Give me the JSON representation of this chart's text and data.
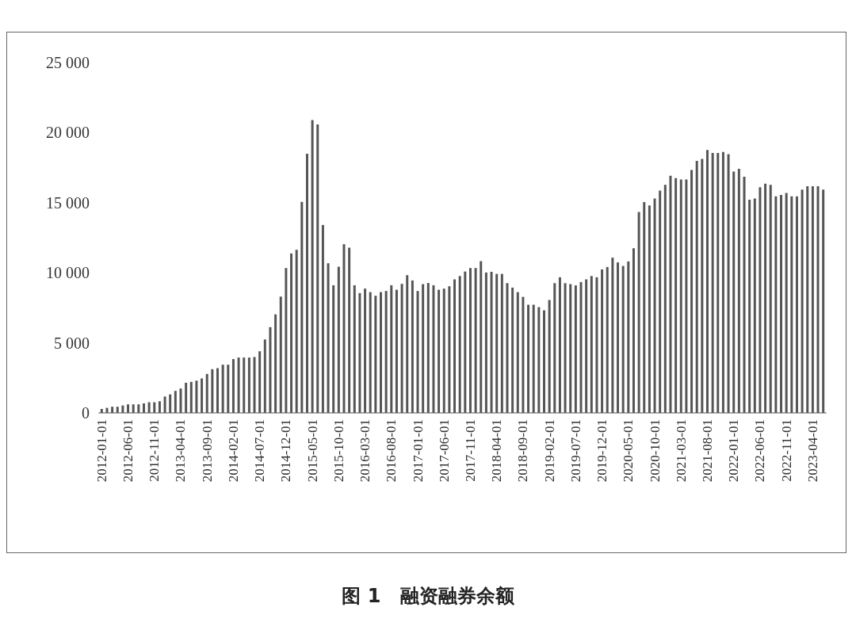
{
  "chart_data": {
    "type": "bar",
    "title": "图 1　融资融券余额",
    "categories": [
      "2012-01-01",
      null,
      null,
      null,
      null,
      "2012-06-01",
      null,
      null,
      null,
      null,
      "2012-11-01",
      null,
      null,
      null,
      null,
      "2013-04-01",
      null,
      null,
      null,
      null,
      "2013-09-01",
      null,
      null,
      null,
      null,
      "2014-02-01",
      null,
      null,
      null,
      null,
      "2014-07-01",
      null,
      null,
      null,
      null,
      "2014-12-01",
      null,
      null,
      null,
      null,
      "2015-05-01",
      null,
      null,
      null,
      null,
      "2015-10-01",
      null,
      null,
      null,
      null,
      "2016-03-01",
      null,
      null,
      null,
      null,
      "2016-08-01",
      null,
      null,
      null,
      null,
      "2017-01-01",
      null,
      null,
      null,
      null,
      "2017-06-01",
      null,
      null,
      null,
      null,
      "2017-11-01",
      null,
      null,
      null,
      null,
      "2018-04-01",
      null,
      null,
      null,
      null,
      "2018-09-01",
      null,
      null,
      null,
      null,
      "2019-02-01",
      null,
      null,
      null,
      null,
      "2019-07-01",
      null,
      null,
      null,
      null,
      "2019-12-01",
      null,
      null,
      null,
      null,
      "2020-05-01",
      null,
      null,
      null,
      null,
      "2020-10-01",
      null,
      null,
      null,
      null,
      "2021-03-01",
      null,
      null,
      null,
      null,
      "2021-08-01",
      null,
      null,
      null,
      null,
      "2022-01-01",
      null,
      null,
      null,
      null,
      "2022-06-01",
      null,
      null,
      null,
      null,
      "2022-11-01",
      null,
      null,
      null,
      null,
      "2023-04-01",
      null,
      null
    ],
    "values": [
      280,
      360,
      440,
      440,
      530,
      610,
      610,
      610,
      680,
      760,
      760,
      830,
      1170,
      1320,
      1570,
      1740,
      2150,
      2210,
      2300,
      2460,
      2780,
      3120,
      3190,
      3440,
      3440,
      3840,
      3950,
      3950,
      3950,
      3990,
      4400,
      5240,
      6120,
      7030,
      8300,
      10340,
      11380,
      11640,
      15060,
      18490,
      20900,
      20590,
      13410,
      10680,
      9110,
      10430,
      12040,
      11790,
      9110,
      8550,
      8870,
      8620,
      8360,
      8620,
      8700,
      9110,
      8790,
      9210,
      9830,
      9450,
      8700,
      9190,
      9270,
      9110,
      8790,
      8870,
      9040,
      9530,
      9770,
      10090,
      10340,
      10340,
      10830,
      10020,
      10070,
      9920,
      9920,
      9260,
      8940,
      8620,
      8280,
      7720,
      7720,
      7550,
      7320,
      8060,
      9260,
      9680,
      9260,
      9190,
      9100,
      9340,
      9530,
      9770,
      9680,
      10240,
      10410,
      11080,
      10740,
      10490,
      10810,
      11750,
      14340,
      15040,
      14810,
      15300,
      15870,
      16280,
      16920,
      16750,
      16660,
      16660,
      17340,
      17980,
      18130,
      18770,
      18550,
      18550,
      18620,
      18470,
      17220,
      17420,
      16850,
      15210,
      15300,
      16110,
      16360,
      16280,
      15450,
      15550,
      15700,
      15450,
      15450,
      15940,
      16170,
      16170,
      16170,
      15940
    ],
    "color": "#555555",
    "ylim": [
      0,
      25000
    ],
    "yticks": [
      0,
      {
        "value": 5000,
        "label": "5 000"
      },
      {
        "value": 10000,
        "label": "10 000"
      },
      {
        "value": 15000,
        "label": "15 000"
      },
      {
        "value": 20000,
        "label": "20 000"
      },
      {
        "value": 25000,
        "label": "25 000"
      }
    ]
  }
}
